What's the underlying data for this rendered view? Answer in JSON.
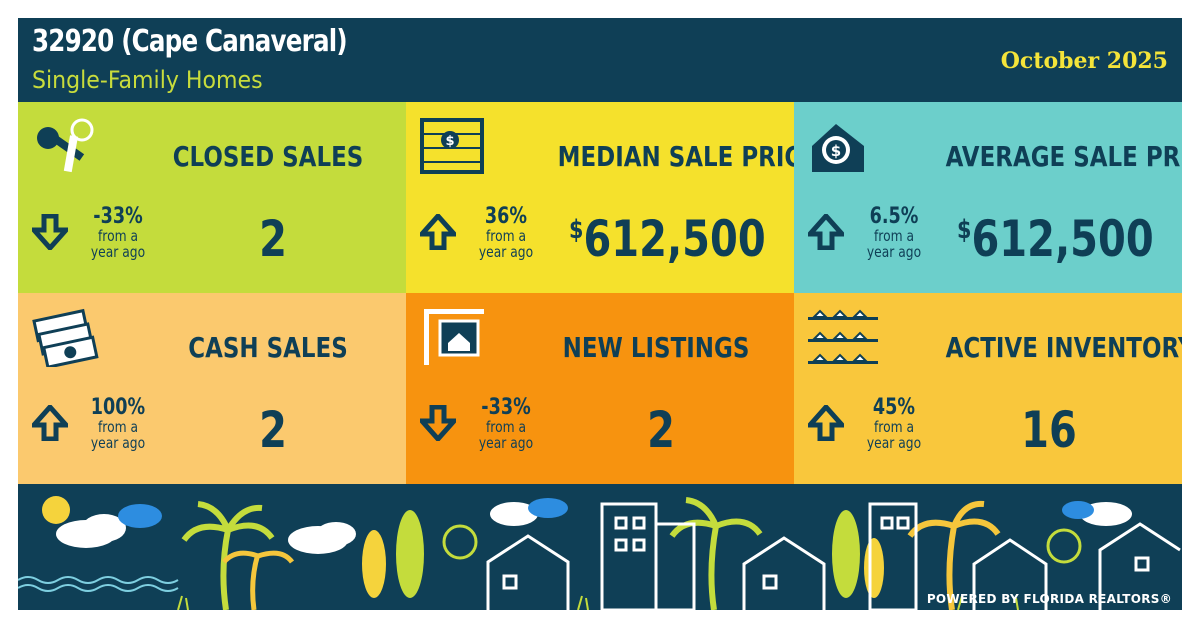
{
  "header": {
    "title": "32920 (Cape Canaveral)",
    "subtitle": "Single-Family Homes",
    "period": "October 2025"
  },
  "tiles": [
    {
      "label": "CLOSED SALES",
      "change": "-33%",
      "direction": "down",
      "from": "from a\nyear ago",
      "value": "2",
      "currency": "",
      "bg": "#c4dc3c",
      "icon": "keys-icon"
    },
    {
      "label": "MEDIAN SALE PRICE",
      "change": "36%",
      "direction": "up",
      "from": "from a\nyear ago",
      "value": "612,500",
      "currency": "$",
      "bg": "#f5e12c",
      "icon": "abacus-icon"
    },
    {
      "label": "AVERAGE SALE PRICE",
      "change": "6.5%",
      "direction": "up",
      "from": "from a\nyear ago",
      "value": "612,500",
      "currency": "$",
      "bg": "#6ccfcb",
      "icon": "house-dollar-icon"
    },
    {
      "label": "CASH SALES",
      "change": "100%",
      "direction": "up",
      "from": "from a\nyear ago",
      "value": "2",
      "currency": "",
      "bg": "#fbc96e",
      "icon": "cash-icon"
    },
    {
      "label": "NEW LISTINGS",
      "change": "-33%",
      "direction": "down",
      "from": "from a\nyear ago",
      "value": "2",
      "currency": "",
      "bg": "#f7930f",
      "icon": "listing-sign-icon"
    },
    {
      "label": "ACTIVE INVENTORY",
      "change": "45%",
      "direction": "up",
      "from": "from a\nyear ago",
      "value": "16",
      "currency": "",
      "bg": "#f9c73c",
      "icon": "houses-grid-icon"
    }
  ],
  "footer": {
    "powered_by": "POWERED BY FLORIDA REALTORS®"
  },
  "colors": {
    "navy": "#0f3f56",
    "lime": "#c4dc3c",
    "yellow": "#f5e12c",
    "teal": "#6ccfcb",
    "peach": "#fbc96e",
    "orange": "#f7930f",
    "gold": "#f9c73c"
  }
}
